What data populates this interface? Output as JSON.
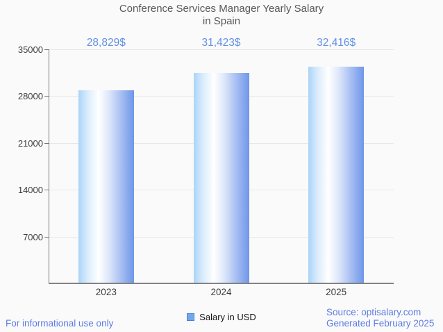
{
  "title": {
    "line1": "Conference Services Manager Yearly Salary",
    "line2": "in Spain"
  },
  "chart_data": {
    "type": "bar",
    "title": "Conference Services Manager Yearly Salary in Spain",
    "categories": [
      "2023",
      "2024",
      "2025"
    ],
    "series": [
      {
        "name": "Salary in USD",
        "values": [
          28829,
          31423,
          32416
        ]
      }
    ],
    "value_labels": [
      "28,829$",
      "31,423$",
      "32,416$"
    ],
    "xlabel": "",
    "ylabel": "",
    "ylim": [
      0,
      35000
    ],
    "yticks": [
      7000,
      14000,
      21000,
      28000,
      35000
    ],
    "grid": true,
    "legend_position": "bottom-center"
  },
  "legend": {
    "label": "Salary in USD"
  },
  "footer": {
    "left": "For informational use only",
    "source_line1": "Source: optisalary.com",
    "source_line2": "Generated February 2025"
  },
  "colors": {
    "bar_gradient_left": "#a9d4f9",
    "bar_gradient_mid": "#ffffff",
    "bar_gradient_right": "#6e96e9",
    "value_label_text": "#6191e5",
    "footer_text": "#5d7ce2",
    "legend_swatch_fill": "#6fa8ec",
    "legend_swatch_border": "#4f7fd3",
    "title_text": "#58585a",
    "axis_text": "#3d3d3d",
    "axis_line": "#757575",
    "gridline": "#e7e7e7",
    "background": "#fafafa"
  }
}
